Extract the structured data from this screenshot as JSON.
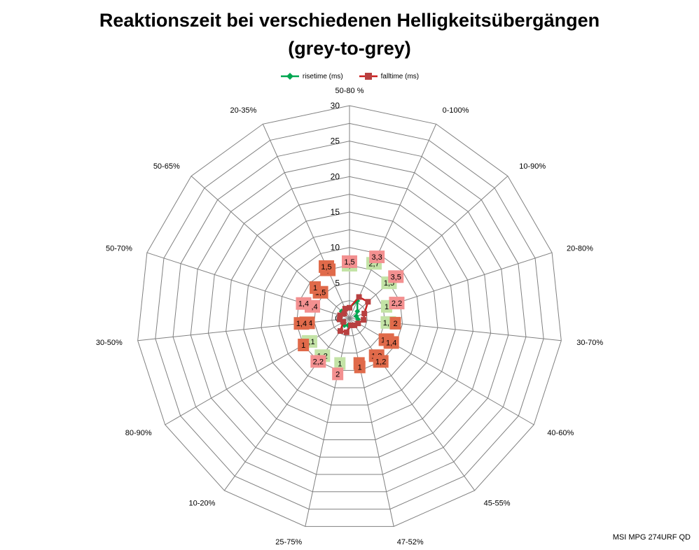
{
  "chart_data": {
    "type": "radar",
    "title": "Reaktionszeit bei verschiedenen Helligkeitsübergängen",
    "subtitle": "(grey-to-grey)",
    "categories": [
      "50-80 %",
      "0-100%",
      "10-90%",
      "20-80%",
      "30-70%",
      "40-60%",
      "45-55%",
      "47-52%",
      "25-75%",
      "10-20%",
      "80-90%",
      "30-50%",
      "50-70%",
      "50-65%",
      "20-35%"
    ],
    "radial_ticks": [
      0,
      5,
      10,
      15,
      20,
      25,
      30
    ],
    "rlim": [
      0,
      30
    ],
    "grid": true,
    "legend_position": "top",
    "series": [
      {
        "name": "risetime (ms)",
        "color": "#00a650",
        "marker": "diamond",
        "values": [
          1.5,
          2.7,
          1.5,
          1,
          1.2,
          1.4,
          1.2,
          1,
          1,
          1.2,
          1.1,
          1.4,
          1.4,
          1.5,
          1.5
        ],
        "labels": [
          "1,5",
          "2,7",
          "1,5",
          "1",
          "1,2",
          "1,4",
          "1,2",
          "1",
          "1",
          "1,2",
          "1,1",
          "1,4",
          "1,4",
          "1,5",
          "1,5"
        ],
        "label_colors": [
          "#c3e3a6",
          "#c3e3a6",
          "#c3e3a6",
          "#c3e3a6",
          "#c3e3a6",
          "#e06a4a",
          "#e06a4a",
          "#e06a4a",
          "#c3e3a6",
          "#c3e3a6",
          "#c3e3a6",
          "#e06a4a",
          "#f39090",
          "#e06a4a",
          "#e06a4a"
        ]
      },
      {
        "name": "falltime (ms)",
        "color": "#cc1f1f",
        "marker": "square",
        "values": [
          1.5,
          3.3,
          3.5,
          2.2,
          2,
          1.4,
          1.2,
          1,
          2,
          2.2,
          1,
          1.4,
          1.4,
          1,
          1.5
        ],
        "labels": [
          "1,5",
          "3,3",
          "3,5",
          "2,2",
          "2",
          "1,4",
          "1,2",
          "1",
          "2",
          "2,2",
          "1",
          "1,4",
          "1,4",
          "1",
          "1,5"
        ],
        "label_colors": [
          "#f39090",
          "#f39090",
          "#f39090",
          "#f39090",
          "#e06a4a",
          "#e06a4a",
          "#e06a4a",
          "#e06a4a",
          "#f39090",
          "#f39090",
          "#e06a4a",
          "#e06a4a",
          "#f39090",
          "#e06a4a",
          "#e06a4a"
        ]
      }
    ]
  },
  "footnote": "MSI MPG 274URF QD"
}
